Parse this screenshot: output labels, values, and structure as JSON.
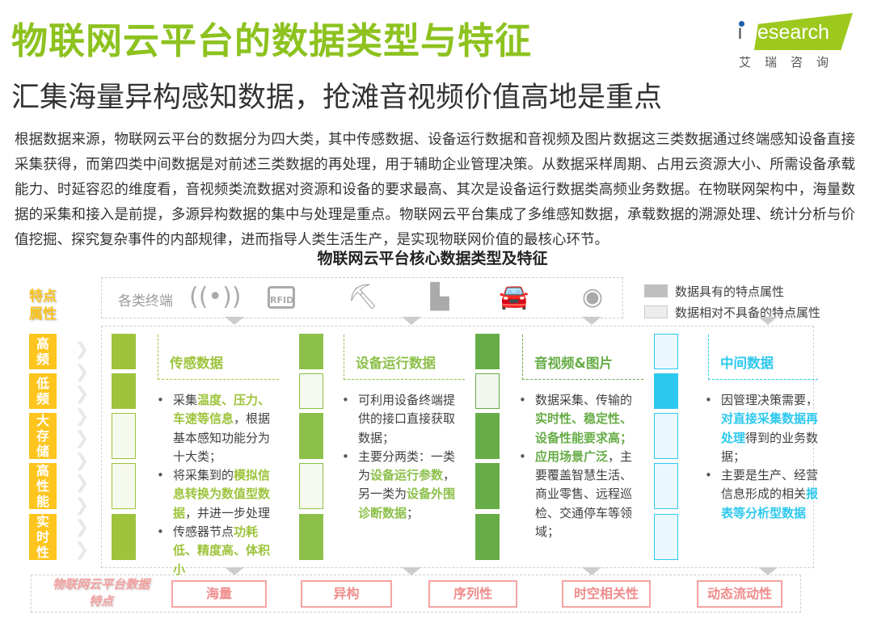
{
  "title": "物联网云平台的数据类型与特征",
  "subtitle": "汇集海量异构感知数据，抢滩音视频价值高地是重点",
  "logo": {
    "brand": "iResearch",
    "cn": "艾瑞咨询"
  },
  "paragraph": "根据数据来源，物联网云平台的数据分为四大类，其中传感数据、设备运行数据和音视频及图片数据这三类数据通过终端感知设备直接采集获得，而第四类中间数据是对前述三类数据的再处理，用于辅助企业管理决策。从数据采样周期、占用云资源大小、所需设备承载能力、时延容忍的维度看，音视频类流数据对资源和设备的要求最高、其次是设备运行数据类高频业务数据。在物联网架构中，海量数据的采集和接入是前提，多源异构数据的集中与处理是重点。物联网云平台集成了多维感知数据，承载数据的溯源处理、统计分析与价值挖掘、探究复杂事件的内部规律，进而指导人类生活生产，是实现物联网价值的最核心环节。",
  "chart_title": "物联网云平台核心数据类型及特征",
  "terminals": {
    "label": "各类终端",
    "icons": [
      "wireless-signal-icon",
      "rfid-icon",
      "excavator-icon",
      "industrial-machine-icon",
      "car-icon",
      "camera-icon"
    ]
  },
  "legend": [
    {
      "label": "数据具有的特点属性",
      "color": "#bfbfbf"
    },
    {
      "label": "数据相对不具备的特点属性",
      "color": "#ededed"
    }
  ],
  "attributes": {
    "header": "特点属性",
    "items": [
      "高频",
      "低频",
      "大存储",
      "高性能",
      "实时性"
    ]
  },
  "columns": [
    {
      "title": "传感数据",
      "color": "#9dc43c",
      "light": "#f6f9ee",
      "has": [
        true,
        true,
        false,
        false,
        true
      ],
      "bullets": [
        [
          {
            "t": "采集"
          },
          {
            "t": "温度、压力、车速等信息",
            "hl": true
          },
          {
            "t": "，根据基本感知功能分为十大类；"
          }
        ],
        [
          {
            "t": "将采集到的"
          },
          {
            "t": "模拟信息转换为数值型数据",
            "hl": true
          },
          {
            "t": "，并进一步处理"
          }
        ],
        [
          {
            "t": "传感器节点"
          },
          {
            "t": "功耗低、精度高、体积小",
            "hl": true
          }
        ]
      ]
    },
    {
      "title": "设备运行数据",
      "color": "#8cc04a",
      "light": "#f4f9ef",
      "has": [
        true,
        false,
        true,
        false,
        true
      ],
      "bullets": [
        [
          {
            "t": "可利用设备终端提供的接口直接获取数据；"
          }
        ],
        [
          {
            "t": "主要分两类：一类为"
          },
          {
            "t": "设备运行参数",
            "hl": true
          },
          {
            "t": "，另一类为"
          },
          {
            "t": "设备外围诊断数据",
            "hl": true
          },
          {
            "t": "；"
          }
        ]
      ]
    },
    {
      "title": "音视频&图片",
      "color": "#67ad47",
      "light": "#f1f7ee",
      "has": [
        true,
        false,
        true,
        true,
        true
      ],
      "bullets": [
        [
          {
            "t": "数据采集、传输的"
          },
          {
            "t": "实时性、稳定性、设备性能要求高；",
            "hl": true
          }
        ],
        [
          {
            "t": "应用场景广泛",
            "hl": true
          },
          {
            "t": "，主要覆盖智慧生活、商业零售、远程巡检、交通停车等领域；"
          }
        ]
      ]
    },
    {
      "title": "中间数据",
      "color": "#2dc8ee",
      "light": "#eaf8fd",
      "has": [
        false,
        true,
        false,
        false,
        false
      ],
      "bullets": [
        [
          {
            "t": "因管理决策需要，"
          },
          {
            "t": "对直接采集数据再处理",
            "hl": true
          },
          {
            "t": "得到的业务数据；"
          }
        ],
        [
          {
            "t": "主要是生产、经营信息形成的相关"
          },
          {
            "t": "报表等分析型数据",
            "hl": true
          }
        ]
      ]
    }
  ],
  "bottom": {
    "label": "物联网云平台数据特点",
    "items": [
      "海量",
      "异构",
      "序列性",
      "时空相关性",
      "动态流动性"
    ]
  }
}
